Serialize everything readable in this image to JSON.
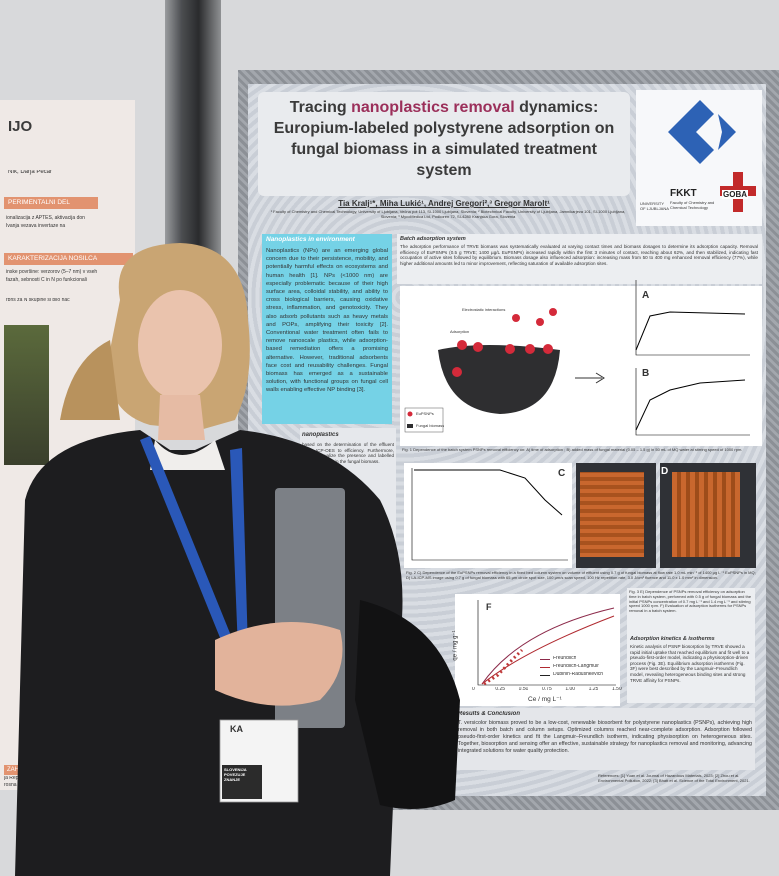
{
  "left_poster": {
    "title": "IJO",
    "author": "Ník, Darja Pečar",
    "section_1": "PERIMENTALNI DEL",
    "section_1_text": "ionalizacija z APTES, aktivacija don Ivanja vezava invertaze na",
    "section_2": "KARAKTERIZACIJA NOSILCA",
    "section_2_text": "inske površine: verzorov (5–7 nm) v vseh fazah, sebnosti C in N po funkcionali",
    "section_2_text_2": "rbns za N skupine si bilo nač",
    "footer_1": "ZAHVALA",
    "footer_2": "ja Republika Slovenija",
    "footer_3": "rosna sistemska tehno"
  },
  "poster": {
    "title_parts": [
      "Tracing ",
      "nanoplastics removal",
      " dynamics: Europium-labeled polystyrene adsorption on fungal biomass in a simulated treatment system"
    ],
    "authors": "Tia Kralj¹*, Miha Lukić¹, Andrej Gregori²,³ Gregor Marolt¹",
    "affiliations": "¹ Faculty of Chemistry and Chemical Technology, University of Ljubljana, Večna pot 113, SI-1000 Ljubljana, Slovenia; ² Biotechnical Faculty, University of Ljubljana, Jamnikarjeva 101, SI-1000 Ljubljana, Slovenia; ³ MycoMedica Ltd, Podkoren 72, SI-4280 Kranjska Gora, Slovenia",
    "logos": {
      "university": "UNIVERSITY OF LJUBLJANA",
      "faculty": "FKKT",
      "faculty_full": "Faculty of Chemistry and Chemical Technology",
      "partner": "GOBA"
    },
    "intro": {
      "heading": "Nanoplastics in environment",
      "text": "Nanoplastics (NPs) are an emerging global concern due to their persistence, mobility, and potentially harmful effects on ecosystems and human health [1]. NPs (<1000 nm) are especially problematic because of their high surface area, colloidal stability, and ability to cross biological barriers, causing oxidative stress, inflammation, and genotoxicity. They also adsorb pollutants such as heavy metals and POPs, amplifying their toxicity [2]. Conventional water treatment often fails to remove nanoscale plastics, while adsorption-based remediation offers a promising alternative. However, traditional adsorbents face cost and reusability challenges. Fungal biomass has emerged as a sustainable solution, with functional groups on fungal cell walls enabling effective NP binding [3]."
    },
    "methods": {
      "heading": "nanoplastics",
      "text": "based on the determination of the effluent using ICP-OES to efficiency. Furthermore, LA-ICP-visualize the presence and labelled polystyrene within the fungal biomass."
    },
    "batch": {
      "heading": "Batch adsorption system",
      "text": "The adsorption performance of TRVE biomass was systematically evaluated at varying contact times and biomass dosages to determine its adsorption capacity. Removal efficiency of EuPSNPs (0.5 g TRVE; 1400 µg/L EuPSNPs) increased rapidly within the first 3 minutes of contact, reaching about 62%, and then stabilized, indicating fast occupation of active sites followed by equilibrium. Biomass dosage also influenced adsorption: increasing mass from 50 to 400 mg enhanced removal efficiency (77%), while higher additional amounts led to minor improvement, reflecting saturation of available adsorption sites."
    },
    "figure_1": {
      "label_a": "A",
      "label_b": "B",
      "scheme_electrostatic": "Electrostatic interactions",
      "scheme_adsorption": "Adsorption",
      "legend_eu": "EuPSNPs",
      "legend_fungal": "Fungal biomass",
      "caption": "Fig. 1 Dependence of the batch system PSNPs removal efficiency on: A) time of adsorption ; B) added mass of fungal material (0.05 – 1.5 g) in 50 mL of MQ water at stirring speed of 1000 rpm."
    },
    "figure_2": {
      "label_c": "C",
      "label_d": "D",
      "caption": "Fig. 2 C) Dependence of the EuPSNPs removal efficiency in a fixed bed column system on volume of effluent using 0.7 g of fungal biomass at flow rate 1.0 mL min⁻¹ of 1400 µg L⁻¹ EuPSNPs in MQ; D) LA-ICP-MS image using 0.7 g of fungal biomass with 65 µm circle spot size, 100 µm/s scan speed, 100 Hz repetition rate, 3.0 J/cm² fluence and 11.0 x 1.0 mm² in dimension."
    },
    "figure_3": {
      "label_f": "F",
      "y_axis": "qe / mg g⁻¹",
      "x_axis": "Ce / mg L⁻¹",
      "x_ticks": [
        "0",
        "0.25",
        "0.50",
        "0.75",
        "1.00",
        "1.25",
        "1.50"
      ],
      "legend": [
        "Freundlich",
        "Freundlich-Langmuir",
        "Dubinin-Radushkevich"
      ]
    },
    "caption_right": "Fig. 3 E) Dependence of PSNPs removal efficiency on adsorption time in batch system, performed with 0.5 g of fungal biomass and the initial PSNPs concentration of 0.7 mg L⁻¹ and 1.4 mg L⁻¹ and stirring speed 1000 rpm. F) Evaluation of adsorption isotherms for PSNPs removal in a batch system.",
    "kinetics": {
      "heading": "Adsorption kinetics & isotherms",
      "text": "Kinetic analysis of PSNP biosorption by TRVE showed a rapid initial uptake that reached equilibrium and fit well to a pseudo-first-order model, indicating a physisorption-driven process (Fig. 3E). Equilibrium adsorption isotherms (Fig. 3F) were best described by the Langmuir–Freundlich model, revealing heterogeneous binding sites and strong TRVE affinity for PSNPs."
    },
    "results": {
      "heading": "Results & Conclusion",
      "text": "T. versicolor biomass proved to be a low-cost, renewable biosorbent for polystyrene nanoplastics (PSNPs), achieving high removal in both batch and column setups. Optimized columns reached near-complete adsorption. Adsorption followed pseudo-first-order kinetics and fit the Langmuir–Freundlich isotherm, indicating physisorption on heterogeneous sites. Together, biosorption and sensing offer an effective, sustainable strategy for nanoplastics removal and monitoring, advancing integrated solutions for water quality protection."
    },
    "references": "References: [1] Yuan et al. Journal of Hazardous Materials, 2023; [2] Zhou et al. Environmental Pollution, 2022; [3] Bhatt et al. Science of the Total Environment, 2021."
  },
  "badge": {
    "name": "KA",
    "slogan": "SLOVENIJA POVEZUJE ZNANJE"
  }
}
